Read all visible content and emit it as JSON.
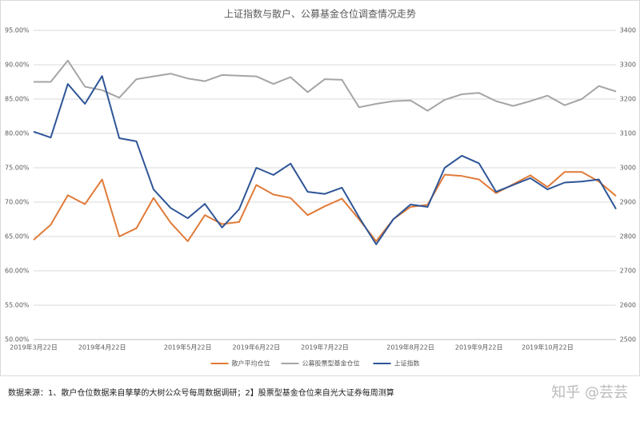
{
  "chart_data": {
    "type": "line",
    "title": "上证指数与散户、公募基金仓位调查情况走势",
    "categories": [
      "2019年3月22日",
      null,
      null,
      null,
      "2019年4月22日",
      null,
      null,
      null,
      null,
      "2019年5月22日",
      null,
      null,
      null,
      "2019年6月22日",
      null,
      null,
      null,
      "2019年7月22日",
      null,
      null,
      null,
      null,
      "2019年8月22日",
      null,
      null,
      null,
      "2019年9月22日",
      null,
      null,
      null,
      "2019年10月22日",
      null,
      null,
      null,
      null
    ],
    "series": [
      {
        "name": "散户平均仓位",
        "color": "#e07b39",
        "values": [
          64.5,
          66.7,
          71.0,
          69.7,
          73.3,
          65.0,
          66.2,
          70.6,
          67.0,
          64.3,
          68.1,
          66.8,
          67.1,
          72.5,
          71.1,
          70.6,
          68.1,
          69.4,
          70.5,
          67.5,
          64.3,
          67.5,
          69.3,
          69.6,
          74.0,
          73.8,
          73.3,
          71.3,
          72.6,
          73.9,
          72.2,
          74.4,
          74.4,
          73.0,
          70.9
        ]
      },
      {
        "name": "公募股票型基金仓位",
        "color": "#a5a5a5",
        "values": [
          87.5,
          87.5,
          90.6,
          86.8,
          86.3,
          85.2,
          87.9,
          88.3,
          88.7,
          88.0,
          87.6,
          88.5,
          88.4,
          88.3,
          87.2,
          88.2,
          86.0,
          87.9,
          87.8,
          83.8,
          84.3,
          84.7,
          84.8,
          83.3,
          84.9,
          85.7,
          85.9,
          84.7,
          84.0,
          84.7,
          85.5,
          84.1,
          85.0,
          86.9,
          86.1
        ]
      },
      {
        "name": "上证指数",
        "color": "#2e5597",
        "axis": "y2",
        "values": [
          3105,
          3088,
          3244,
          3186,
          3267,
          3086,
          3077,
          2937,
          2883,
          2853,
          2895,
          2826,
          2879,
          3000,
          2979,
          3012,
          2930,
          2924,
          2942,
          2856,
          2777,
          2850,
          2893,
          2886,
          3000,
          3035,
          3013,
          2930,
          2950,
          2970,
          2937,
          2957,
          2960,
          2966,
          2880
        ]
      }
    ],
    "ylim": [
      50,
      95
    ],
    "yticks": [
      {
        "value": 50,
        "label": "50.00%"
      },
      {
        "value": 55,
        "label": "55.00%"
      },
      {
        "value": 60,
        "label": "60.00%"
      },
      {
        "value": 65,
        "label": "65.00%"
      },
      {
        "value": 70,
        "label": "70.00%"
      },
      {
        "value": 75,
        "label": "75.00%"
      },
      {
        "value": 80,
        "label": "80.00%"
      },
      {
        "value": 85,
        "label": "85.00%"
      },
      {
        "value": 90,
        "label": "90.00%"
      },
      {
        "value": 95,
        "label": "95.00%"
      }
    ],
    "y2lim": [
      2500,
      3400
    ],
    "y2ticks": [
      2500,
      2600,
      2700,
      2800,
      2900,
      3000,
      3100,
      3200,
      3300,
      3400
    ],
    "grid": true,
    "legend": "bottom"
  },
  "footer": {
    "source": "数据来源：1、散户仓位数据来自孳孳的大树公众号每周数据调研；2】股票型基金仓位来自光大证券每周测算",
    "watermark": "知乎 @芸芸"
  }
}
